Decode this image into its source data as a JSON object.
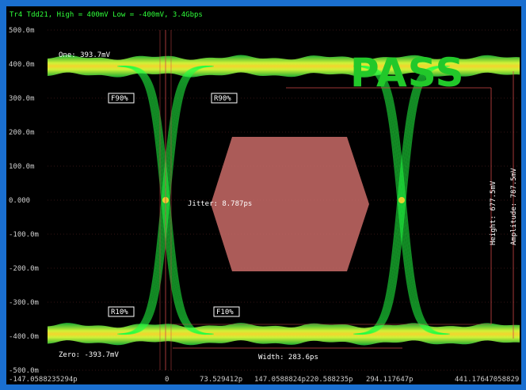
{
  "chart_data": {
    "type": "line",
    "title": "Tr4 Tdd21, High = 400mV Low = -400mV, 3.4Gbps",
    "status": "PASS",
    "x_tick_labels": [
      "-147.0588235294p",
      "0",
      "73.529412p",
      "147.0588824p",
      "220.588235p",
      "294.117647p",
      "441.17647058829"
    ],
    "y_tick_labels": [
      "500.0m",
      "400.0m",
      "300.0m",
      "200.0m",
      "100.0m",
      "0.000",
      "-100.0m",
      "-200.0m",
      "-300.0m",
      "-400.0m",
      "-500.0m"
    ],
    "ylim": [
      -500,
      500
    ],
    "xlim": [
      -147.0588,
      441.1765
    ],
    "one_level": "One: 393.7mV",
    "zero_level": "Zero: -393.7mV",
    "jitter": "Jitter: 8.787ps",
    "width": "Width: 283.6ps",
    "height": "Height: 677.5mV",
    "amplitude": "Amplitude: 787.5mV",
    "markers": {
      "f90": "F90%",
      "r90": "R90%",
      "r10": "R10%",
      "f10": "F10%"
    },
    "one_mv": 393.7,
    "zero_mv": -393.7,
    "crossings_ps": [
      0,
      294.1176
    ],
    "colors": {
      "trace": "#22ff44",
      "mask": "#c96b67",
      "pass": "#22c82a",
      "grid": "#6a2a2a"
    }
  }
}
